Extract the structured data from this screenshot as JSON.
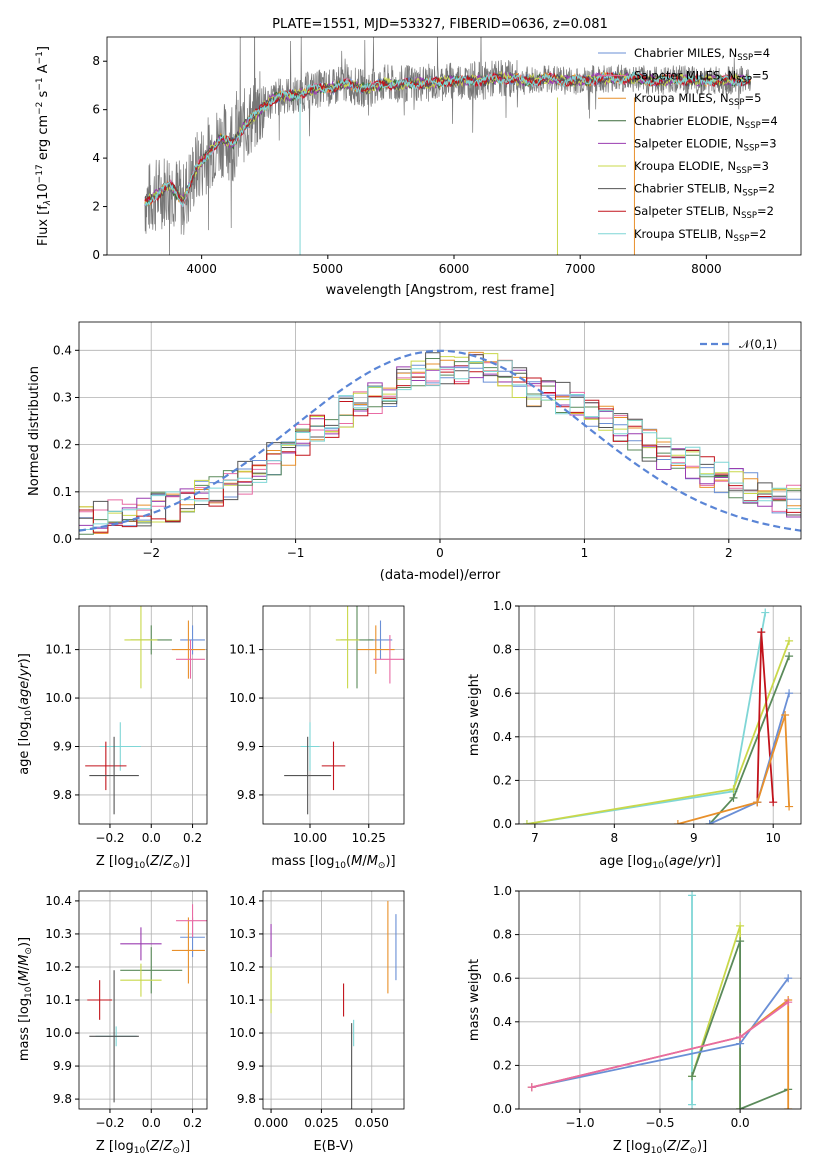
{
  "colors": [
    "#6a8fd6",
    "#e8902b",
    "#d98a2a",
    "#5a8a5a",
    "#9a3cb0",
    "#c9d84a",
    "#555555",
    "#c2131b",
    "#7fd6d6",
    "#e86ba4",
    "#7a7a7a"
  ],
  "chart_data": [
    {
      "type": "line",
      "title": "PLATE=1551, MJD=53327, FIBERID=0636, z=0.081",
      "xlabel": "wavelength [Angstrom, rest frame]",
      "ylabel": "Flux [f_λ 10^-17 erg cm^-2 s^-1 A^-1]",
      "xlim": [
        3250,
        8750
      ],
      "ylim": [
        0,
        9
      ],
      "xticks": [
        4000,
        5000,
        6000,
        7000,
        8000
      ],
      "yticks": [
        0,
        2,
        4,
        6,
        8
      ],
      "legend": [
        {
          "label": "Chabrier MILES, N_SSP=4",
          "color": "#6a8fd6"
        },
        {
          "label": "Salpeter MILES, N_SSP=5",
          "color": "#e86ba4"
        },
        {
          "label": "Kroupa MILES, N_SSP=5",
          "color": "#e8902b"
        },
        {
          "label": "Chabrier ELODIE, N_SSP=4",
          "color": "#3a6a3a"
        },
        {
          "label": "Salpeter ELODIE, N_SSP=3",
          "color": "#9a3cb0"
        },
        {
          "label": "Kroupa ELODIE, N_SSP=3",
          "color": "#c9d84a"
        },
        {
          "label": "Chabrier STELIB, N_SSP=2",
          "color": "#555555"
        },
        {
          "label": "Salpeter STELIB, N_SSP=2",
          "color": "#c2131b"
        },
        {
          "label": "Kroupa STELIB, N_SSP=2",
          "color": "#7fd6d6"
        }
      ],
      "model_curve": {
        "x": [
          3550,
          3650,
          3750,
          3850,
          3950,
          4050,
          4150,
          4250,
          4350,
          4450,
          4550,
          4650,
          4750,
          4850,
          4950,
          5050,
          5150,
          5250,
          5350,
          5450,
          5550,
          5650,
          5750,
          5850,
          5950,
          6050,
          6150,
          6250,
          6350,
          6450,
          6550,
          6650,
          6750,
          6850,
          6950,
          7050,
          7150,
          7250,
          7350,
          7450,
          7550,
          7650,
          7750,
          7850,
          7950,
          8050,
          8150,
          8250,
          8350
        ],
        "y": [
          2.2,
          2.5,
          2.9,
          2.2,
          3.5,
          4.2,
          4.8,
          4.6,
          5.4,
          5.9,
          6.4,
          6.6,
          6.6,
          6.8,
          6.9,
          6.9,
          7.1,
          6.9,
          6.9,
          7.1,
          7.0,
          7.1,
          7.1,
          7.1,
          7.2,
          7.2,
          7.2,
          7.2,
          7.3,
          7.3,
          7.2,
          7.2,
          7.3,
          7.2,
          7.2,
          7.2,
          7.3,
          7.3,
          7.3,
          7.3,
          7.2,
          7.2,
          7.3,
          7.2,
          7.2,
          7.2,
          7.2,
          7.2,
          7.2
        ]
      }
    },
    {
      "type": "line",
      "xlabel": "(data-model)/error",
      "ylabel": "Normed distribution",
      "xlim": [
        -2.5,
        2.5
      ],
      "ylim": [
        0,
        0.46
      ],
      "xticks": [
        -2,
        -1,
        0,
        1,
        2
      ],
      "yticks": [
        0.0,
        0.1,
        0.2,
        0.3,
        0.4
      ],
      "legend": [
        {
          "label": "𝒩(0,1)",
          "color": "#5a85d6"
        }
      ],
      "bin_width": 0.1,
      "histogram_mean": [
        0.04,
        0.045,
        0.05,
        0.055,
        0.06,
        0.065,
        0.07,
        0.08,
        0.09,
        0.1,
        0.11,
        0.13,
        0.15,
        0.17,
        0.19,
        0.21,
        0.23,
        0.25,
        0.27,
        0.29,
        0.3,
        0.31,
        0.33,
        0.35,
        0.36,
        0.36,
        0.36,
        0.37,
        0.36,
        0.35,
        0.33,
        0.31,
        0.32,
        0.3,
        0.28,
        0.27,
        0.26,
        0.24,
        0.22,
        0.2,
        0.18,
        0.17,
        0.16,
        0.14,
        0.13,
        0.12,
        0.11,
        0.1,
        0.09,
        0.08
      ]
    },
    {
      "type": "scatter",
      "xlabel": "Z [log10(Z/Z⊙)]",
      "ylabel": "age [log10(age/yr)]",
      "xlim": [
        -0.35,
        0.27
      ],
      "ylim": [
        9.74,
        10.19
      ],
      "xticks": [
        -0.2,
        0.0,
        0.2
      ],
      "yticks": [
        9.8,
        9.9,
        10.0,
        10.1
      ],
      "points": [
        {
          "x": 0.2,
          "y": 10.12,
          "ex": 0.06,
          "ey": 0.03,
          "c": 0
        },
        {
          "x": 0.18,
          "y": 10.1,
          "ex": 0.08,
          "ey": 0.06,
          "c": 1
        },
        {
          "x": 0.19,
          "y": 10.08,
          "ex": 0.07,
          "ey": 0.04,
          "c": 9
        },
        {
          "x": 0.0,
          "y": 10.12,
          "ex": 0.1,
          "ey": 0.03,
          "c": 3
        },
        {
          "x": -0.05,
          "y": 10.12,
          "ex": 0.08,
          "ey": 0.1,
          "c": 5
        },
        {
          "x": -0.15,
          "y": 9.9,
          "ex": 0.1,
          "ey": 0.05,
          "c": 8
        },
        {
          "x": -0.22,
          "y": 9.86,
          "ex": 0.1,
          "ey": 0.05,
          "c": 7
        },
        {
          "x": -0.18,
          "y": 9.84,
          "ex": 0.12,
          "ey": 0.08,
          "c": 6
        }
      ]
    },
    {
      "type": "scatter",
      "xlabel": "mass [log10(M/M⊙)]",
      "ylabel": "",
      "xlim": [
        9.8,
        10.4
      ],
      "ylim": [
        9.74,
        10.19
      ],
      "xticks": [
        10.0,
        10.25
      ],
      "yticks": [
        9.8,
        9.9,
        10.0,
        10.1
      ],
      "points": [
        {
          "x": 10.3,
          "y": 10.12,
          "ex": 0.05,
          "ey": 0.04,
          "c": 0
        },
        {
          "x": 10.28,
          "y": 10.1,
          "ex": 0.08,
          "ey": 0.05,
          "c": 1
        },
        {
          "x": 10.34,
          "y": 10.08,
          "ex": 0.07,
          "ey": 0.05,
          "c": 9
        },
        {
          "x": 10.2,
          "y": 10.12,
          "ex": 0.07,
          "ey": 0.1,
          "c": 3
        },
        {
          "x": 10.16,
          "y": 10.12,
          "ex": 0.05,
          "ey": 0.1,
          "c": 5
        },
        {
          "x": 10.0,
          "y": 9.9,
          "ex": 0.04,
          "ey": 0.05,
          "c": 8
        },
        {
          "x": 10.1,
          "y": 9.86,
          "ex": 0.05,
          "ey": 0.05,
          "c": 7
        },
        {
          "x": 9.99,
          "y": 9.84,
          "ex": 0.1,
          "ey": 0.08,
          "c": 6
        }
      ]
    },
    {
      "type": "line",
      "xlabel": "age [log10(age/yr)]",
      "ylabel": "mass weight",
      "xlim": [
        6.8,
        10.35
      ],
      "ylim": [
        0,
        1
      ],
      "xticks": [
        7,
        8,
        9,
        10
      ],
      "yticks": [
        0.0,
        0.2,
        0.4,
        0.6,
        0.8,
        1.0
      ],
      "series": [
        {
          "c": 8,
          "x": [
            6.9,
            9.5,
            9.9
          ],
          "y": [
            0.0,
            0.15,
            0.97
          ]
        },
        {
          "c": 5,
          "x": [
            6.9,
            9.5,
            10.2
          ],
          "y": [
            0.0,
            0.16,
            0.84
          ]
        },
        {
          "c": 3,
          "x": [
            9.2,
            9.5,
            10.2
          ],
          "y": [
            0.0,
            0.12,
            0.77
          ]
        },
        {
          "c": 7,
          "x": [
            9.8,
            9.85,
            10.0
          ],
          "y": [
            0.1,
            0.88,
            0.1
          ]
        },
        {
          "c": 0,
          "x": [
            9.2,
            9.8,
            10.2
          ],
          "y": [
            0.0,
            0.1,
            0.6
          ]
        },
        {
          "c": 1,
          "x": [
            8.8,
            9.8,
            10.15,
            10.2
          ],
          "y": [
            0.0,
            0.1,
            0.5,
            0.08
          ]
        }
      ]
    },
    {
      "type": "scatter",
      "xlabel": "Z [log10(Z/Z⊙)]",
      "ylabel": "mass [log10(M/M⊙)]",
      "xlim": [
        -0.35,
        0.27
      ],
      "ylim": [
        9.77,
        10.43
      ],
      "xticks": [
        -0.2,
        0.0,
        0.2
      ],
      "yticks": [
        9.8,
        9.9,
        10.0,
        10.1,
        10.2,
        10.3,
        10.4
      ],
      "points": [
        {
          "x": 0.2,
          "y": 10.29,
          "ex": 0.06,
          "ey": 0.06,
          "c": 0
        },
        {
          "x": 0.18,
          "y": 10.25,
          "ex": 0.08,
          "ey": 0.1,
          "c": 1
        },
        {
          "x": 0.2,
          "y": 10.34,
          "ex": 0.08,
          "ey": 0.05,
          "c": 9
        },
        {
          "x": -0.05,
          "y": 10.27,
          "ex": 0.1,
          "ey": 0.05,
          "c": 4
        },
        {
          "x": 0.0,
          "y": 10.19,
          "ex": 0.15,
          "ey": 0.07,
          "c": 3
        },
        {
          "x": -0.05,
          "y": 10.16,
          "ex": 0.1,
          "ey": 0.05,
          "c": 5
        },
        {
          "x": -0.17,
          "y": 9.99,
          "ex": 0.1,
          "ey": 0.03,
          "c": 8
        },
        {
          "x": -0.25,
          "y": 10.1,
          "ex": 0.06,
          "ey": 0.06,
          "c": 7
        },
        {
          "x": -0.18,
          "y": 9.99,
          "ex": 0.12,
          "ey": 0.2,
          "c": 6
        }
      ]
    },
    {
      "type": "scatter",
      "xlabel": "E(B-V)",
      "ylabel": "",
      "xlim": [
        -0.004,
        0.066
      ],
      "ylim": [
        9.77,
        10.43
      ],
      "xticks": [
        0.0,
        0.025,
        0.05
      ],
      "yticks": [
        9.8,
        9.9,
        10.0,
        10.1,
        10.2,
        10.3,
        10.4
      ],
      "points": [
        {
          "x": 0.0,
          "y": 10.28,
          "ey": 0.05,
          "c": 4
        },
        {
          "x": 0.0,
          "y": 10.13,
          "ey": 0.07,
          "c": 5
        },
        {
          "x": 0.036,
          "y": 10.1,
          "ey": 0.05,
          "c": 7
        },
        {
          "x": 0.041,
          "y": 10.0,
          "ey": 0.04,
          "c": 8
        },
        {
          "x": 0.04,
          "y": 9.9,
          "ey": 0.13,
          "c": 6
        },
        {
          "x": 0.058,
          "y": 10.26,
          "ey": 0.14,
          "c": 1
        },
        {
          "x": 0.062,
          "y": 10.26,
          "ey": 0.1,
          "c": 0
        }
      ]
    },
    {
      "type": "line",
      "xlabel": "Z [log10(Z/Z⊙)]",
      "ylabel": "mass weight",
      "xlim": [
        -1.38,
        0.38
      ],
      "ylim": [
        0,
        1
      ],
      "xticks": [
        -1.0,
        -0.5,
        0.0
      ],
      "yticks": [
        0.0,
        0.2,
        0.4,
        0.6,
        0.8,
        1.0
      ],
      "series": [
        {
          "c": 8,
          "x": [
            -0.3,
            -0.3
          ],
          "y": [
            0.02,
            0.98
          ]
        },
        {
          "c": 5,
          "x": [
            -0.3,
            0.0,
            0.0
          ],
          "y": [
            0.15,
            0.84,
            0.0
          ]
        },
        {
          "c": 3,
          "x": [
            -0.3,
            0.0,
            0.0,
            0.3
          ],
          "y": [
            0.15,
            0.77,
            0.0,
            0.09
          ]
        },
        {
          "c": 0,
          "x": [
            -1.3,
            0.0,
            0.3
          ],
          "y": [
            0.1,
            0.3,
            0.6
          ]
        },
        {
          "c": 1,
          "x": [
            -1.3,
            0.0,
            0.3,
            0.3
          ],
          "y": [
            0.1,
            0.33,
            0.5,
            0.0
          ]
        },
        {
          "c": 9,
          "x": [
            -1.3,
            0.0,
            0.3
          ],
          "y": [
            0.1,
            0.33,
            0.49
          ]
        }
      ]
    }
  ]
}
